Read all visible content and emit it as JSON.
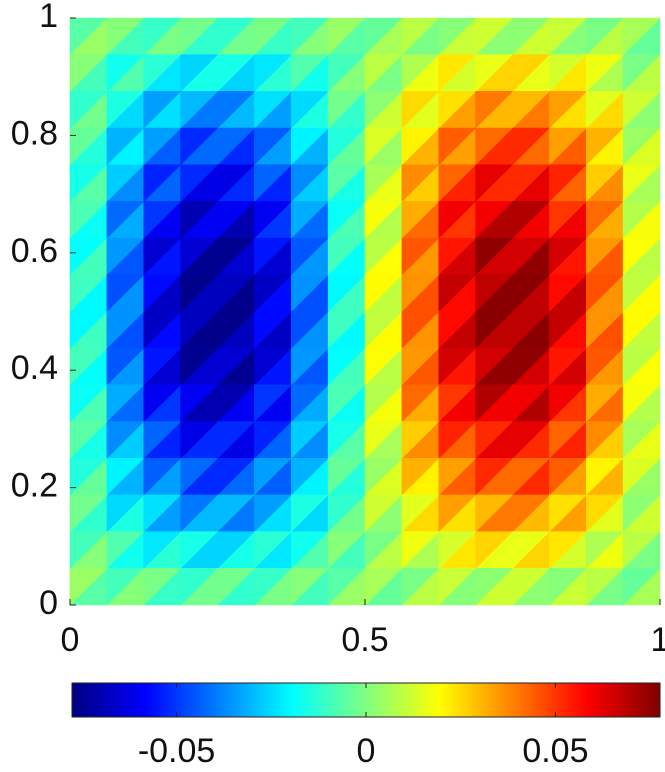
{
  "chart_data": {
    "type": "trimesh",
    "xlim": [
      0,
      1
    ],
    "ylim": [
      0,
      1
    ],
    "xticks": [
      0,
      0.5,
      1
    ],
    "yticks": [
      0,
      0.2,
      0.4,
      0.6,
      0.8,
      1
    ],
    "clim": [
      -0.0776,
      0.0776
    ],
    "cticks": [
      -0.05,
      0,
      0.05
    ],
    "colormap": "jet",
    "lower": [
      [
        0.004,
        -0.009,
        -0.001,
        -0.012,
        -0.002,
        -0.011,
        0.001,
        -0.006,
        0.006,
        -0.001,
        0.011,
        0.002,
        0.012,
        0.001,
        0.009,
        -0.004
      ],
      [
        -0.009,
        -0.007,
        -0.023,
        -0.016,
        -0.026,
        -0.013,
        -0.017,
        0.001,
        -0.001,
        0.017,
        0.013,
        0.026,
        0.016,
        0.023,
        0.007,
        0.009
      ],
      [
        -0.002,
        -0.025,
        -0.024,
        -0.04,
        -0.03,
        -0.034,
        -0.015,
        -0.012,
        0.012,
        0.015,
        0.034,
        0.03,
        0.04,
        0.024,
        0.025,
        0.002
      ],
      [
        -0.014,
        -0.021,
        -0.044,
        -0.042,
        -0.052,
        -0.034,
        -0.031,
        -0.004,
        0.004,
        0.031,
        0.034,
        0.052,
        0.042,
        0.044,
        0.021,
        0.014
      ],
      [
        -0.006,
        -0.037,
        -0.043,
        -0.062,
        -0.052,
        -0.053,
        -0.027,
        -0.016,
        0.016,
        0.027,
        0.053,
        0.052,
        0.062,
        0.043,
        0.037,
        0.006
      ],
      [
        -0.018,
        -0.032,
        -0.06,
        -0.06,
        -0.07,
        -0.05,
        -0.042,
        -0.008,
        0.008,
        0.042,
        0.05,
        0.07,
        0.06,
        0.06,
        0.032,
        0.018
      ],
      [
        -0.009,
        -0.045,
        -0.055,
        -0.075,
        -0.065,
        -0.065,
        -0.035,
        -0.019,
        0.019,
        0.035,
        0.065,
        0.065,
        0.075,
        0.055,
        0.045,
        0.009
      ],
      [
        -0.02,
        -0.036,
        -0.067,
        -0.068,
        -0.076,
        -0.057,
        -0.046,
        -0.01,
        0.01,
        0.046,
        0.057,
        0.076,
        0.068,
        0.067,
        0.036,
        0.02
      ],
      [
        -0.01,
        -0.046,
        -0.057,
        -0.076,
        -0.068,
        -0.067,
        -0.036,
        -0.02,
        0.02,
        0.036,
        0.067,
        0.068,
        0.076,
        0.057,
        0.046,
        0.01
      ],
      [
        -0.019,
        -0.035,
        -0.065,
        -0.065,
        -0.075,
        -0.055,
        -0.045,
        -0.009,
        0.009,
        0.045,
        0.055,
        0.075,
        0.065,
        0.065,
        0.035,
        0.019
      ],
      [
        -0.008,
        -0.042,
        -0.05,
        -0.07,
        -0.06,
        -0.06,
        -0.032,
        -0.018,
        0.018,
        0.032,
        0.06,
        0.06,
        0.07,
        0.05,
        0.042,
        0.008
      ],
      [
        -0.016,
        -0.027,
        -0.053,
        -0.052,
        -0.062,
        -0.043,
        -0.037,
        -0.006,
        0.006,
        0.037,
        0.043,
        0.062,
        0.052,
        0.053,
        0.027,
        0.016
      ],
      [
        -0.004,
        -0.031,
        -0.034,
        -0.052,
        -0.042,
        -0.044,
        -0.021,
        -0.014,
        0.014,
        0.021,
        0.044,
        0.042,
        0.052,
        0.034,
        0.031,
        0.004
      ],
      [
        -0.012,
        -0.015,
        -0.034,
        -0.03,
        -0.04,
        -0.024,
        -0.025,
        -0.002,
        0.002,
        0.025,
        0.024,
        0.04,
        0.03,
        0.034,
        0.015,
        0.012
      ],
      [
        0.001,
        -0.017,
        -0.013,
        -0.026,
        -0.016,
        -0.023,
        -0.007,
        -0.009,
        0.009,
        0.007,
        0.023,
        0.016,
        0.026,
        0.013,
        0.017,
        -0.001
      ],
      [
        -0.006,
        0.001,
        -0.011,
        -0.002,
        -0.012,
        -0.001,
        -0.009,
        0.004,
        -0.004,
        0.009,
        0.001,
        0.012,
        0.002,
        0.011,
        -0.001,
        0.006
      ]
    ],
    "upper": [
      [
        -0.006,
        0.001,
        -0.011,
        -0.002,
        -0.012,
        -0.001,
        -0.009,
        0.004,
        -0.004,
        0.009,
        0.001,
        0.012,
        0.002,
        0.011,
        -0.001,
        0.006
      ],
      [
        0.001,
        -0.017,
        -0.013,
        -0.026,
        -0.016,
        -0.023,
        -0.007,
        -0.009,
        0.009,
        0.007,
        0.023,
        0.016,
        0.026,
        0.013,
        0.017,
        -0.001
      ],
      [
        -0.012,
        -0.015,
        -0.034,
        -0.03,
        -0.04,
        -0.024,
        -0.025,
        -0.002,
        0.002,
        0.025,
        0.024,
        0.04,
        0.03,
        0.034,
        0.015,
        0.012
      ],
      [
        -0.004,
        -0.031,
        -0.034,
        -0.052,
        -0.042,
        -0.044,
        -0.021,
        -0.014,
        0.014,
        0.021,
        0.044,
        0.042,
        0.052,
        0.034,
        0.031,
        0.004
      ],
      [
        -0.016,
        -0.027,
        -0.053,
        -0.052,
        -0.062,
        -0.043,
        -0.037,
        -0.006,
        0.006,
        0.037,
        0.043,
        0.062,
        0.052,
        0.053,
        0.027,
        0.016
      ],
      [
        -0.008,
        -0.042,
        -0.05,
        -0.07,
        -0.06,
        -0.06,
        -0.032,
        -0.018,
        0.018,
        0.032,
        0.06,
        0.06,
        0.07,
        0.05,
        0.042,
        0.008
      ],
      [
        -0.019,
        -0.035,
        -0.065,
        -0.065,
        -0.075,
        -0.055,
        -0.045,
        -0.009,
        0.009,
        0.045,
        0.055,
        0.075,
        0.065,
        0.065,
        0.035,
        0.019
      ],
      [
        -0.01,
        -0.046,
        -0.057,
        -0.076,
        -0.068,
        -0.067,
        -0.036,
        -0.02,
        0.02,
        0.036,
        0.067,
        0.068,
        0.076,
        0.057,
        0.046,
        0.01
      ],
      [
        -0.02,
        -0.036,
        -0.067,
        -0.068,
        -0.076,
        -0.057,
        -0.046,
        -0.01,
        0.01,
        0.046,
        0.057,
        0.076,
        0.068,
        0.067,
        0.036,
        0.02
      ],
      [
        -0.009,
        -0.045,
        -0.055,
        -0.075,
        -0.065,
        -0.065,
        -0.035,
        -0.019,
        0.019,
        0.035,
        0.065,
        0.065,
        0.075,
        0.055,
        0.045,
        0.009
      ],
      [
        -0.018,
        -0.032,
        -0.06,
        -0.06,
        -0.07,
        -0.05,
        -0.042,
        -0.008,
        0.008,
        0.042,
        0.05,
        0.07,
        0.06,
        0.06,
        0.032,
        0.018
      ],
      [
        -0.006,
        -0.037,
        -0.043,
        -0.062,
        -0.052,
        -0.053,
        -0.027,
        -0.016,
        0.016,
        0.027,
        0.053,
        0.052,
        0.062,
        0.043,
        0.037,
        0.006
      ],
      [
        -0.014,
        -0.021,
        -0.044,
        -0.042,
        -0.052,
        -0.034,
        -0.031,
        -0.004,
        0.004,
        0.031,
        0.034,
        0.052,
        0.042,
        0.044,
        0.021,
        0.014
      ],
      [
        -0.002,
        -0.025,
        -0.024,
        -0.04,
        -0.03,
        -0.034,
        -0.015,
        -0.012,
        0.012,
        0.015,
        0.034,
        0.03,
        0.04,
        0.024,
        0.025,
        0.002
      ],
      [
        -0.009,
        -0.007,
        -0.023,
        -0.016,
        -0.026,
        -0.013,
        -0.017,
        0.001,
        -0.001,
        0.017,
        0.013,
        0.026,
        0.016,
        0.023,
        0.007,
        0.009
      ],
      [
        0.004,
        -0.009,
        -0.001,
        -0.012,
        -0.002,
        -0.011,
        0.001,
        -0.006,
        0.006,
        -0.001,
        0.011,
        0.002,
        0.012,
        0.001,
        0.009,
        -0.004
      ]
    ]
  }
}
